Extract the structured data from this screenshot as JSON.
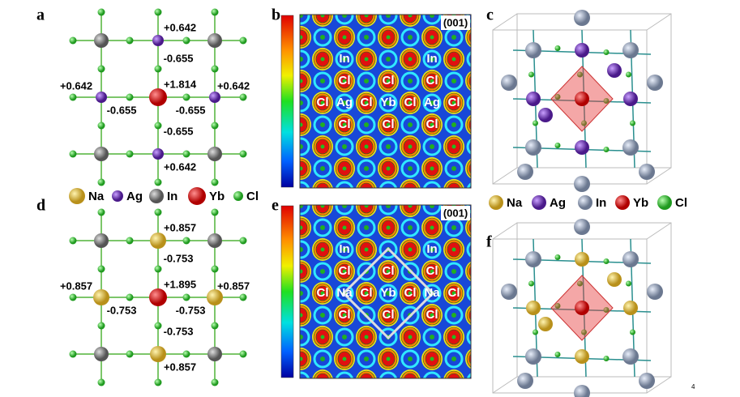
{
  "panel_labels": [
    "a",
    "b",
    "c",
    "d",
    "e",
    "f"
  ],
  "panel_a": {
    "charges": [
      "+0.642",
      "-0.655",
      "+0.642",
      "+1.814",
      "+0.642",
      "-0.655",
      "-0.655",
      "-0.655",
      "+0.642"
    ]
  },
  "panel_d": {
    "charges": [
      "+0.857",
      "-0.753",
      "+0.857",
      "+1.895",
      "+0.857",
      "-0.753",
      "-0.753",
      "-0.753",
      "+0.857"
    ]
  },
  "legend_middle": [
    "Na",
    "Ag",
    "In",
    "Yb",
    "Cl"
  ],
  "legend_right": [
    "Na",
    "Ag",
    "In",
    "Yb",
    "Cl"
  ],
  "panel_b": {
    "plane": "(001)",
    "atom_labels": [
      "In",
      "In",
      "Cl",
      "Cl",
      "Cl",
      "Cl",
      "Ag",
      "Cl",
      "Yb",
      "Cl",
      "Ag",
      "Cl",
      "Cl",
      "Cl",
      "Cl"
    ]
  },
  "panel_e": {
    "plane": "(001)",
    "atom_labels": [
      "In",
      "In",
      "Cl",
      "Cl",
      "Cl",
      "Cl",
      "Na",
      "Cl",
      "Yb",
      "Cl",
      "Na",
      "Cl",
      "Cl",
      "Cl",
      "Cl"
    ]
  },
  "page_number": "4"
}
